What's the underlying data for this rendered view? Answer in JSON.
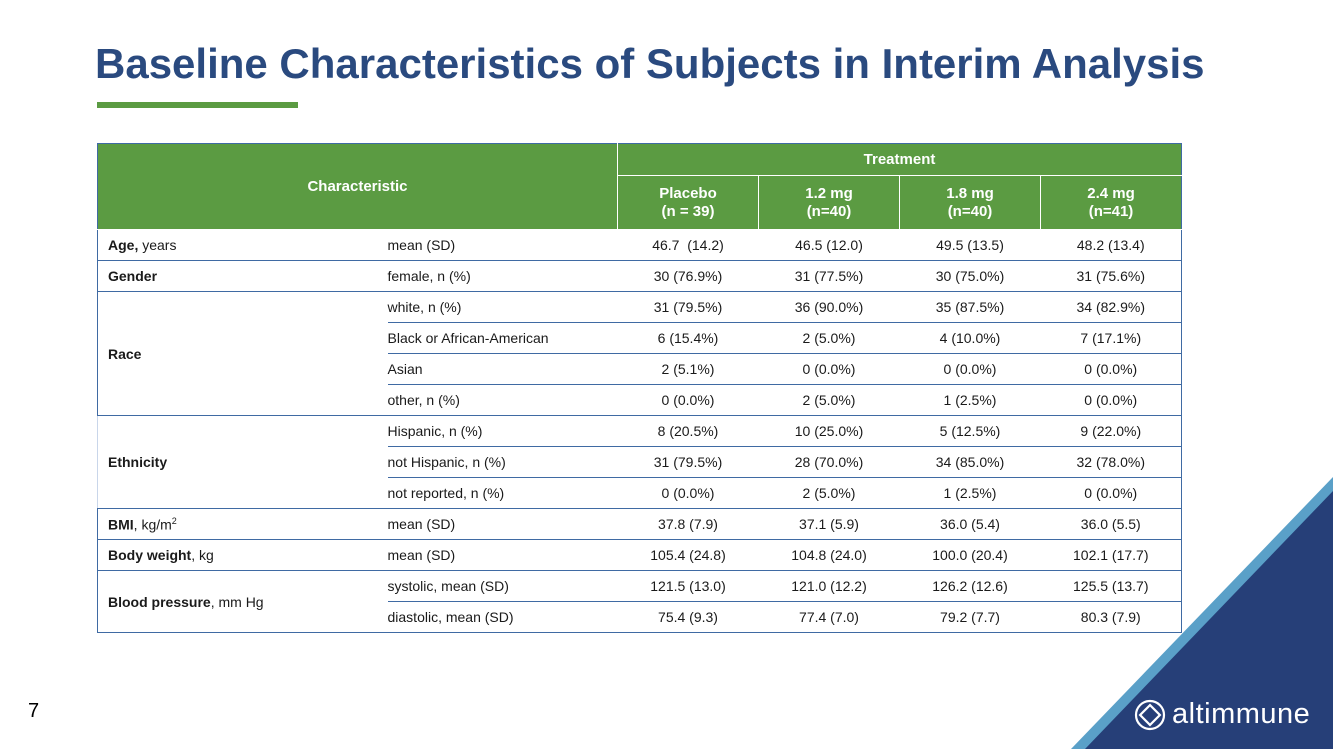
{
  "title": "Baseline Characteristics of Subjects in Interim Analysis",
  "page_number": "7",
  "brand": {
    "name": "altimmune",
    "accent": "#5b9b42",
    "navy": "#2a4a7f"
  },
  "table": {
    "characteristic_header": "Characteristic",
    "treatment_header": "Treatment",
    "arms": [
      {
        "name": "Placebo",
        "n": "(n = 39)"
      },
      {
        "name": "1.2 mg",
        "n": "(n=40)"
      },
      {
        "name": "1.8 mg",
        "n": "(n=40)"
      },
      {
        "name": "2.4 mg",
        "n": "(n=41)"
      }
    ],
    "age": {
      "label": "Age,",
      "unit": " years",
      "stat": "mean (SD)",
      "values": [
        "46.7  (14.2)",
        "46.5 (12.0)",
        "49.5 (13.5)",
        "48.2 (13.4)"
      ]
    },
    "gender": {
      "label": "Gender",
      "stat": "female, n (%)",
      "values": [
        "30 (76.9%)",
        "31 (77.5%)",
        "30 (75.0%)",
        "31 (75.6%)"
      ]
    },
    "race": {
      "label": "Race",
      "rows": [
        {
          "stat": "white, n (%)",
          "values": [
            "31 (79.5%)",
            "36 (90.0%)",
            "35 (87.5%)",
            "34 (82.9%)"
          ]
        },
        {
          "stat": "Black or African-American",
          "values": [
            "6 (15.4%)",
            "2 (5.0%)",
            "4 (10.0%)",
            "7 (17.1%)"
          ]
        },
        {
          "stat": "Asian",
          "values": [
            "2 (5.1%)",
            "0 (0.0%)",
            "0 (0.0%)",
            "0 (0.0%)"
          ]
        },
        {
          "stat": "other, n (%)",
          "values": [
            "0 (0.0%)",
            "2 (5.0%)",
            "1 (2.5%)",
            "0 (0.0%)"
          ]
        }
      ]
    },
    "ethnicity": {
      "label": "Ethnicity",
      "rows": [
        {
          "stat": "Hispanic, n (%)",
          "values": [
            "8 (20.5%)",
            "10 (25.0%)",
            "5 (12.5%)",
            "9 (22.0%)"
          ]
        },
        {
          "stat": "not Hispanic, n (%)",
          "values": [
            "31 (79.5%)",
            "28 (70.0%)",
            "34 (85.0%)",
            "32 (78.0%)"
          ]
        },
        {
          "stat": "not reported, n (%)",
          "values": [
            "0 (0.0%)",
            "2 (5.0%)",
            "1 (2.5%)",
            "0 (0.0%)"
          ]
        }
      ]
    },
    "bmi": {
      "label": "BMI",
      "unit": ", kg/m",
      "unit_sup": "2",
      "stat": "mean (SD)",
      "values": [
        "37.8 (7.9)",
        "37.1 (5.9)",
        "36.0 (5.4)",
        "36.0 (5.5)"
      ]
    },
    "body_weight": {
      "label": "Body weight",
      "unit": ", kg",
      "stat": "mean (SD)",
      "values": [
        "105.4 (24.8)",
        "104.8 (24.0)",
        "100.0 (20.4)",
        "102.1 (17.7)"
      ]
    },
    "blood_pressure": {
      "label": "Blood pressure",
      "unit": ", mm Hg",
      "rows": [
        {
          "stat": "systolic, mean (SD)",
          "values": [
            "121.5 (13.0)",
            "121.0 (12.2)",
            "126.2 (12.6)",
            "125.5 (13.7)"
          ]
        },
        {
          "stat": "diastolic, mean (SD)",
          "values": [
            "75.4 (9.3)",
            "77.4 (7.0)",
            "79.2 (7.7)",
            "80.3 (7.9)"
          ]
        }
      ]
    }
  }
}
